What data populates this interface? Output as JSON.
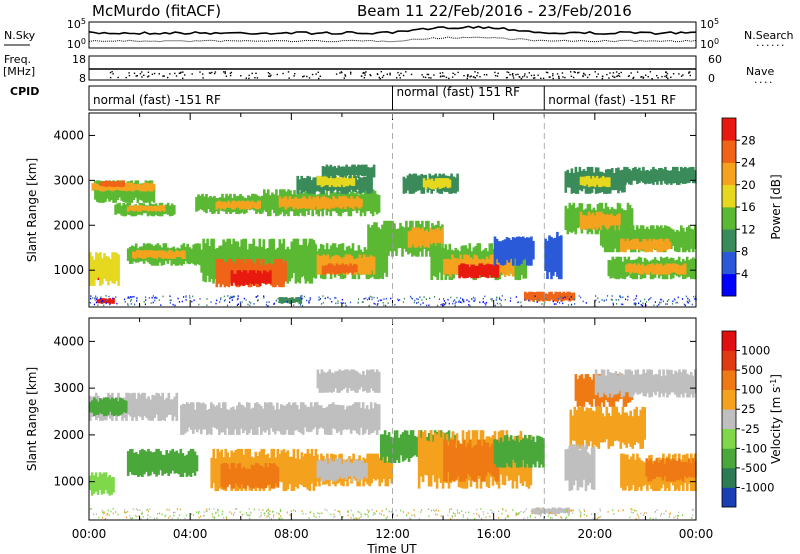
{
  "header": {
    "station": "McMurdo (fitACF)",
    "beam_info": "Beam 11  22/Feb/2016 - 23/Feb/2016"
  },
  "side_labels": {
    "nsky": "N.Sky",
    "freq": "Freq.",
    "freq_unit": "[MHz]",
    "cpid": "CPID",
    "nsearch": "N.Search",
    "nave": "Nave"
  },
  "noise_panel": {
    "left_ticks": [
      "10^5",
      "10^0"
    ],
    "right_ticks": [
      "10^5",
      "10^0"
    ]
  },
  "freq_panel": {
    "left_ticks": [
      "18",
      "8"
    ],
    "right_ticks": [
      "60",
      "0"
    ]
  },
  "cpid_panel": {
    "modes": [
      {
        "label": "normal (fast) -151 RF",
        "start_hour": 0,
        "end_hour": 12
      },
      {
        "label": "normal (fast) 151 RF",
        "start_hour": 12,
        "end_hour": 18
      },
      {
        "label": "normal (fast) -151 RF",
        "start_hour": 18,
        "end_hour": 24
      }
    ]
  },
  "chart_data": [
    {
      "type": "heatmap",
      "name": "power",
      "ylabel": "Slant Range [km]",
      "xlabel": "",
      "xlim": [
        0,
        24
      ],
      "ylim": [
        180,
        4500
      ],
      "yticks": [
        "1000",
        "2000",
        "3000",
        "4000"
      ],
      "colorbar_label": "Power [dB]",
      "colorbar_ticks": [
        "4",
        "8",
        "12",
        "16",
        "20",
        "24",
        "28"
      ],
      "colorbar_range": [
        0,
        30
      ],
      "colors": [
        "#0000ff",
        "#2a5ad8",
        "#3a8b5a",
        "#5ab833",
        "#e6d81e",
        "#f5a31e",
        "#f06418",
        "#e81a10"
      ]
    },
    {
      "type": "heatmap",
      "name": "velocity",
      "ylabel": "Slant Range [km]",
      "xlabel": "Time UT",
      "xlim": [
        0,
        24
      ],
      "ylim": [
        180,
        4500
      ],
      "yticks": [
        "1000",
        "2000",
        "3000",
        "4000"
      ],
      "xticks": [
        "00:00",
        "04:00",
        "08:00",
        "12:00",
        "16:00",
        "20:00",
        "00:00"
      ],
      "colorbar_label": "Velocity [m s^-1]",
      "colorbar_ticks": [
        "1000",
        "500",
        "100",
        "25",
        "-25",
        "-100",
        "-500",
        "-1000"
      ],
      "colors": [
        "#1a3fb5",
        "#2d7b55",
        "#4aa83a",
        "#7fd84a",
        "#bfbfbf",
        "#f4a21e",
        "#ef7a15",
        "#e03a10",
        "#e01010"
      ]
    }
  ]
}
